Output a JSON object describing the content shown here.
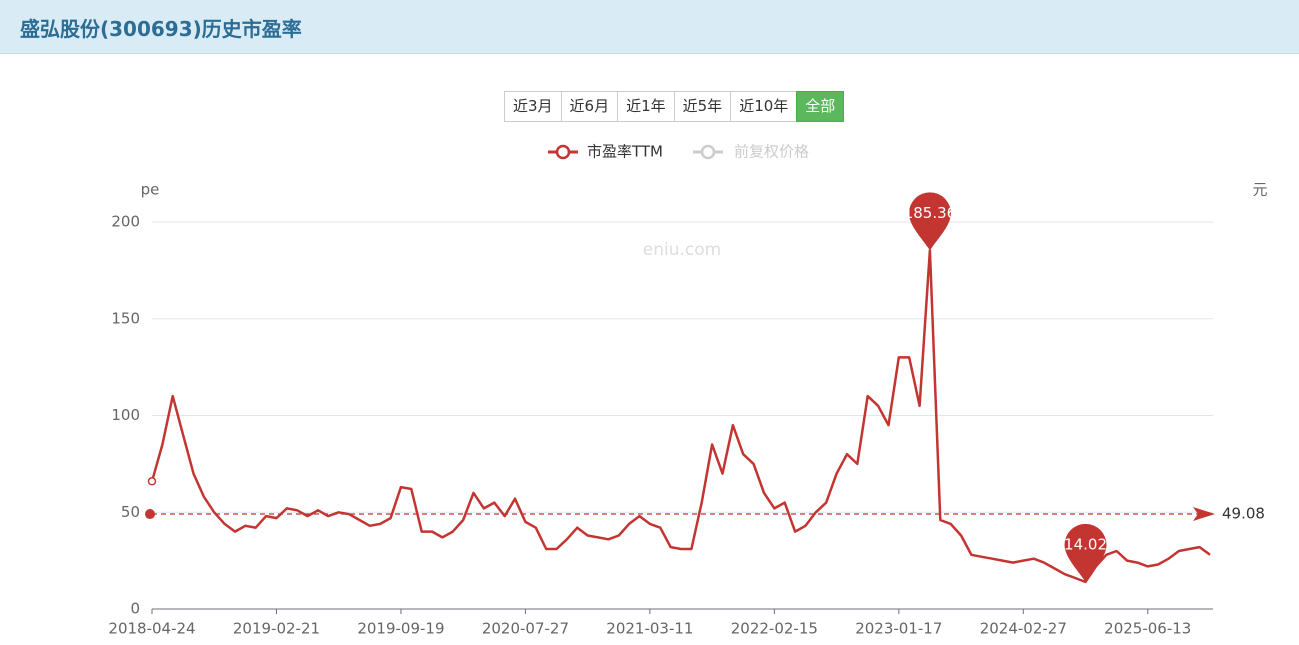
{
  "header": {
    "title": "盛弘股份(300693)历史市盈率"
  },
  "buttons": [
    "近3月",
    "近6月",
    "近1年",
    "近5年",
    "近10年",
    "全部"
  ],
  "active_button": 5,
  "chart_data": {
    "type": "line",
    "watermark": "eniu.com",
    "y_axis_name": "pe",
    "y2_axis_name": "元",
    "categories": [
      "2018-04-24",
      null,
      null,
      null,
      null,
      null,
      null,
      null,
      null,
      null,
      null,
      null,
      "2019-02-21",
      null,
      null,
      null,
      null,
      null,
      null,
      null,
      null,
      null,
      null,
      null,
      "2019-09-19",
      null,
      null,
      null,
      null,
      null,
      null,
      null,
      null,
      null,
      null,
      null,
      "2020-07-27",
      null,
      null,
      null,
      null,
      null,
      null,
      null,
      null,
      null,
      null,
      null,
      "2021-03-11",
      null,
      null,
      null,
      null,
      null,
      null,
      null,
      null,
      null,
      null,
      null,
      "2022-02-15",
      null,
      null,
      null,
      null,
      null,
      null,
      null,
      null,
      null,
      null,
      null,
      "2023-01-17",
      null,
      null,
      null,
      null,
      null,
      null,
      null,
      null,
      null,
      null,
      null,
      "2024-02-27",
      null,
      null,
      null,
      null,
      null,
      null,
      null,
      null,
      null,
      null,
      null,
      "2025-06-13",
      null,
      null,
      null,
      null,
      null,
      null
    ],
    "series": [
      {
        "name": "市盈率TTM",
        "color": "#c23531",
        "values": [
          66,
          85,
          110,
          90,
          70,
          58,
          50,
          44,
          40,
          43,
          42,
          48,
          47,
          52,
          51,
          48,
          51,
          48,
          50,
          49,
          46,
          43,
          44,
          47,
          63,
          62,
          40,
          40,
          37,
          40,
          46,
          60,
          52,
          55,
          48,
          57,
          45,
          42,
          31,
          31,
          36,
          42,
          38,
          37,
          36,
          38,
          44,
          48,
          44,
          42,
          32,
          31,
          31,
          55,
          85,
          70,
          95,
          80,
          75,
          60,
          52,
          55,
          40,
          43,
          50,
          55,
          70,
          80,
          75,
          110,
          105,
          95,
          130,
          130,
          105,
          185.36,
          46,
          44,
          38,
          28,
          27,
          26,
          25,
          24,
          25,
          26,
          24,
          21,
          18,
          16,
          14.02,
          22,
          28,
          30,
          25,
          24,
          22,
          23,
          26,
          30,
          31,
          32,
          28
        ]
      }
    ],
    "inactive_legend": {
      "name": "前复权价格",
      "color": "#cccccc"
    },
    "ylim": [
      0,
      200
    ],
    "yticks": [
      0,
      50,
      100,
      150,
      200
    ],
    "grid": true,
    "mark_line": {
      "value": 49.08
    }
  }
}
